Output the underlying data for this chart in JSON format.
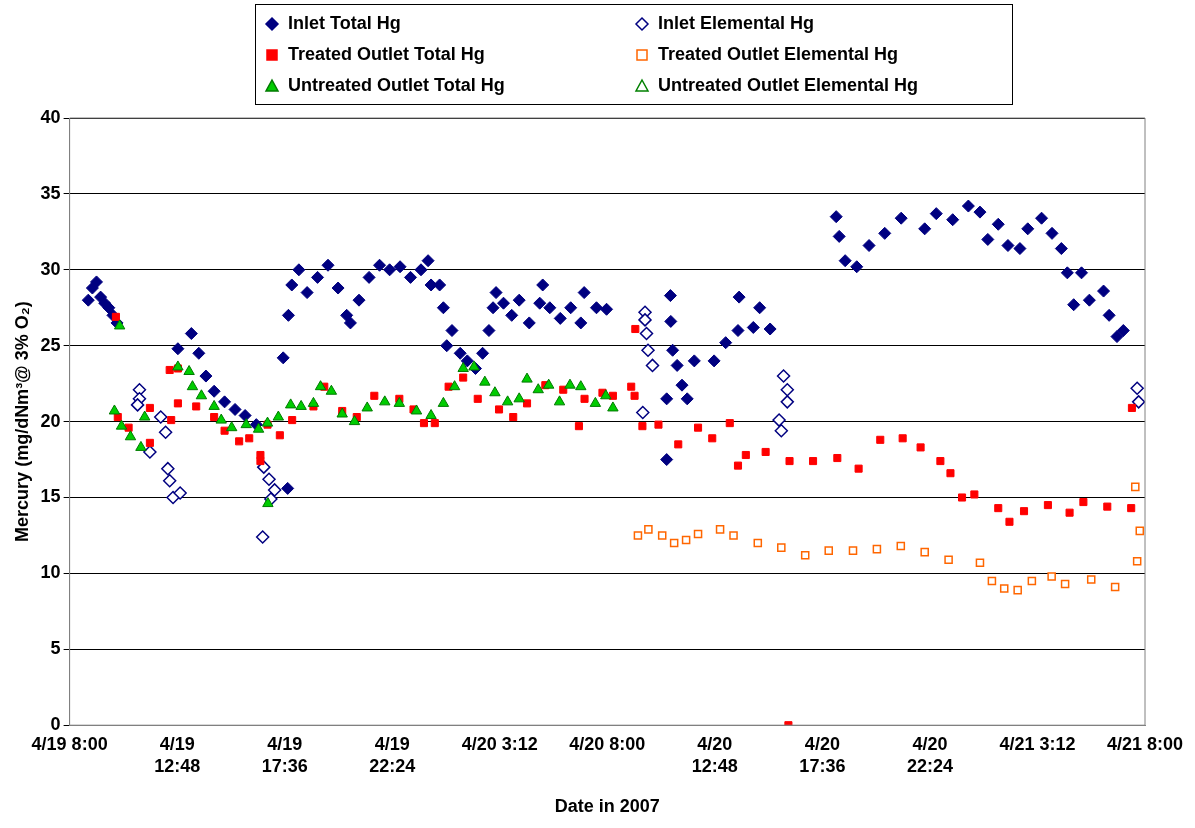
{
  "chart_data": {
    "type": "scatter",
    "xlabel": "Date in 2007",
    "ylabel": "Mercury (mg/dNm³@ 3% O₂)",
    "xlim": [
      "2007-04-19T08:00",
      "2007-04-21T08:00"
    ],
    "xticks": [
      {
        "value": "2007-04-19T08:00",
        "label": "4/19 8:00"
      },
      {
        "value": "2007-04-19T12:48",
        "label": "4/19 12:48"
      },
      {
        "value": "2007-04-19T17:36",
        "label": "4/19 17:36"
      },
      {
        "value": "2007-04-19T22:24",
        "label": "4/19 22:24"
      },
      {
        "value": "2007-04-20T03:12",
        "label": "4/20 3:12"
      },
      {
        "value": "2007-04-20T08:00",
        "label": "4/20 8:00"
      },
      {
        "value": "2007-04-20T12:48",
        "label": "4/20 12:48"
      },
      {
        "value": "2007-04-20T17:36",
        "label": "4/20 17:36"
      },
      {
        "value": "2007-04-20T22:24",
        "label": "4/20 22:24"
      },
      {
        "value": "2007-04-21T03:12",
        "label": "4/21 3:12"
      },
      {
        "value": "2007-04-21T08:00",
        "label": "4/21 8:00"
      }
    ],
    "ylim": [
      0,
      40
    ],
    "yticks": [
      0,
      5,
      10,
      15,
      20,
      25,
      30,
      35,
      40
    ],
    "grid": "y",
    "legend": "top",
    "series": [
      {
        "name": "Inlet Total Hg",
        "color": "#000080",
        "marker": "diamond",
        "x": [
          "2007-04-19T08:50",
          "2007-04-19T09:01",
          "2007-04-19T09:12",
          "2007-04-19T09:23",
          "2007-04-19T09:34",
          "2007-04-19T09:45",
          "2007-04-19T09:56",
          "2007-04-19T10:07",
          "2007-04-19T12:50",
          "2007-04-19T13:26",
          "2007-04-19T13:46",
          "2007-04-19T14:05",
          "2007-04-19T14:27",
          "2007-04-19T14:55",
          "2007-04-19T15:23",
          "2007-04-19T15:50",
          "2007-04-19T16:20",
          "2007-04-19T17:44",
          "2007-04-19T17:32",
          "2007-04-19T17:46",
          "2007-04-19T17:55",
          "2007-04-19T18:14",
          "2007-04-19T18:36",
          "2007-04-19T19:04",
          "2007-04-19T19:32",
          "2007-04-19T19:59",
          "2007-04-19T20:22",
          "2007-04-19T20:32",
          "2007-04-19T20:55",
          "2007-04-19T21:22",
          "2007-04-19T21:50",
          "2007-04-19T22:17",
          "2007-04-19T22:45",
          "2007-04-19T23:13",
          "2007-04-19T23:41",
          "2007-04-20T00:00",
          "2007-04-20T00:08",
          "2007-04-20T00:31",
          "2007-04-20T00:41",
          "2007-04-20T00:50",
          "2007-04-20T01:04",
          "2007-04-20T01:26",
          "2007-04-20T01:45",
          "2007-04-20T02:07",
          "2007-04-20T02:26",
          "2007-04-20T02:43",
          "2007-04-20T02:54",
          "2007-04-20T03:02",
          "2007-04-20T03:22",
          "2007-04-20T03:44",
          "2007-04-20T04:04",
          "2007-04-20T04:31",
          "2007-04-20T04:59",
          "2007-04-20T05:07",
          "2007-04-20T05:26",
          "2007-04-20T05:54",
          "2007-04-20T06:22",
          "2007-04-20T06:49",
          "2007-04-20T06:58",
          "2007-04-20T07:31",
          "2007-04-20T07:58",
          "2007-04-20T10:39",
          "2007-04-20T10:39",
          "2007-04-20T10:49",
          "2007-04-20T10:50",
          "2007-04-20T10:55",
          "2007-04-20T11:07",
          "2007-04-20T11:20",
          "2007-04-20T11:34",
          "2007-04-20T11:53",
          "2007-04-20T12:46",
          "2007-04-20T13:17",
          "2007-04-20T13:50",
          "2007-04-20T14:31",
          "2007-04-20T14:48",
          "2007-04-20T15:16",
          "2007-04-20T13:53",
          "2007-04-20T18:13",
          "2007-04-20T18:21",
          "2007-04-20T18:37",
          "2007-04-20T19:08",
          "2007-04-20T19:41",
          "2007-04-20T20:23",
          "2007-04-20T21:07",
          "2007-04-20T22:10",
          "2007-04-20T22:41",
          "2007-04-20T23:25",
          "2007-04-21T00:07",
          "2007-04-21T00:38",
          "2007-04-21T00:59",
          "2007-04-21T01:27",
          "2007-04-21T01:53",
          "2007-04-21T02:25",
          "2007-04-21T02:46",
          "2007-04-21T03:23",
          "2007-04-21T03:51",
          "2007-04-21T04:16",
          "2007-04-21T04:32",
          "2007-04-21T04:49",
          "2007-04-21T05:10",
          "2007-04-21T05:31",
          "2007-04-21T06:09",
          "2007-04-21T06:24",
          "2007-04-21T06:45",
          "2007-04-21T07:02"
        ],
        "values": [
          28,
          28.8,
          29.2,
          28.2,
          27.8,
          27.5,
          27,
          26.5,
          24.8,
          25.8,
          24.5,
          23,
          22,
          21.3,
          20.8,
          20.4,
          19.8,
          15.6,
          24.2,
          27,
          29,
          30,
          28.5,
          29.5,
          30.3,
          28.8,
          27,
          26.5,
          28,
          29.5,
          30.3,
          30,
          30.2,
          29.5,
          30,
          30.6,
          29,
          29,
          27.5,
          25,
          26,
          24.5,
          24,
          23.5,
          24.5,
          26,
          27.5,
          28.5,
          27.8,
          27,
          28,
          26.5,
          27.8,
          29,
          27.5,
          26.8,
          27.5,
          26.5,
          28.5,
          27.5,
          27.4,
          21.5,
          17.5,
          28.3,
          26.6,
          24.7,
          23.7,
          22.4,
          21.5,
          24,
          24,
          25.2,
          26,
          26.2,
          27.5,
          26.1,
          28.2,
          33.5,
          32.2,
          30.6,
          30.2,
          31.6,
          32.4,
          33.4,
          32.7,
          33.7,
          33.3,
          34.2,
          33.8,
          32,
          33,
          31.6,
          31.4,
          32.7,
          33.4,
          32.4,
          31.4,
          29.8,
          27.7,
          29.8,
          28,
          28.6,
          27,
          25.6,
          26
        ]
      },
      {
        "name": "Inlet Elemental Hg",
        "color": "#000080",
        "marker": "diamond-open",
        "x": [
          "2007-04-19T11:07",
          "2007-04-19T11:07",
          "2007-04-19T11:02",
          "2007-04-19T11:35",
          "2007-04-19T12:04",
          "2007-04-19T12:17",
          "2007-04-19T12:23",
          "2007-04-19T12:28",
          "2007-04-19T12:37",
          "2007-04-19T12:56",
          "2007-04-19T16:40",
          "2007-04-19T16:54",
          "2007-04-19T17:09",
          "2007-04-19T16:59",
          "2007-04-19T16:37",
          "2007-04-20T09:41",
          "2007-04-20T09:41",
          "2007-04-20T09:45",
          "2007-04-20T09:49",
          "2007-04-20T10:01",
          "2007-04-20T09:35",
          "2007-04-20T15:52",
          "2007-04-20T16:02",
          "2007-04-20T16:02",
          "2007-04-20T15:40",
          "2007-04-20T15:46",
          "2007-04-21T07:39",
          "2007-04-21T07:43"
        ],
        "values": [
          22.1,
          21.5,
          21.1,
          18,
          20.3,
          19.3,
          16.9,
          16.1,
          15,
          15.3,
          17,
          16.2,
          15.5,
          14.9,
          12.4,
          27.2,
          26.7,
          25.8,
          24.7,
          23.7,
          20.6,
          23,
          22.1,
          21.3,
          20.1,
          19.4,
          22.2,
          21.3
        ]
      },
      {
        "name": "Treated Outlet Total Hg",
        "color": "#ff0000",
        "marker": "square",
        "x": [
          "2007-04-19T10:04",
          "2007-04-19T10:09",
          "2007-04-19T10:38",
          "2007-04-19T11:35",
          "2007-04-19T11:35",
          "2007-04-19T12:28",
          "2007-04-19T12:50",
          "2007-04-19T12:32",
          "2007-04-19T12:50",
          "2007-04-19T13:39",
          "2007-04-19T14:27",
          "2007-04-19T14:55",
          "2007-04-19T15:34",
          "2007-04-19T16:01",
          "2007-04-19T16:31",
          "2007-04-19T16:31",
          "2007-04-19T16:50",
          "2007-04-19T17:23",
          "2007-04-19T17:56",
          "2007-04-19T18:53",
          "2007-04-19T19:22",
          "2007-04-19T20:10",
          "2007-04-19T20:49",
          "2007-04-19T21:36",
          "2007-04-19T22:43",
          "2007-04-19T23:21",
          "2007-04-19T23:49",
          "2007-04-20T00:18",
          "2007-04-20T00:55",
          "2007-04-20T01:34",
          "2007-04-20T02:13",
          "2007-04-20T03:10",
          "2007-04-20T03:48",
          "2007-04-20T04:25",
          "2007-04-20T05:14",
          "2007-04-20T06:02",
          "2007-04-20T06:44",
          "2007-04-20T06:59",
          "2007-04-20T07:47",
          "2007-04-20T08:15",
          "2007-04-20T09:15",
          "2007-04-20T09:04",
          "2007-04-20T09:13",
          "2007-04-20T09:34",
          "2007-04-20T10:17",
          "2007-04-20T11:10",
          "2007-04-20T12:03",
          "2007-04-20T12:41",
          "2007-04-20T13:28",
          "2007-04-20T13:50",
          "2007-04-20T14:11",
          "2007-04-20T15:04",
          "2007-04-20T16:08",
          "2007-04-20T17:11",
          "2007-04-20T18:16",
          "2007-04-20T19:13",
          "2007-04-20T20:11",
          "2007-04-20T21:11",
          "2007-04-20T21:59",
          "2007-04-20T22:52",
          "2007-04-20T23:19",
          "2007-04-20T23:50",
          "2007-04-21T00:23",
          "2007-04-21T01:27",
          "2007-04-21T01:57",
          "2007-04-21T02:36",
          "2007-04-21T03:40",
          "2007-04-21T04:38",
          "2007-04-21T05:15",
          "2007-04-21T06:19",
          "2007-04-21T07:23",
          "2007-04-21T07:25",
          "2007-04-20T16:05"
        ],
        "values": [
          26.9,
          20.3,
          19.6,
          20.9,
          18.6,
          23.4,
          23.5,
          20.1,
          21.2,
          21,
          20.3,
          19.4,
          18.7,
          18.9,
          17.8,
          17.4,
          19.8,
          19.1,
          20.1,
          21,
          22.3,
          20.7,
          20.3,
          21.7,
          21.5,
          20.8,
          19.9,
          19.9,
          22.3,
          22.9,
          21.5,
          20.8,
          20.3,
          21.2,
          22.4,
          22.1,
          19.7,
          21.5,
          21.9,
          21.7,
          26.1,
          22.3,
          21.7,
          19.7,
          19.8,
          18.5,
          19.6,
          18.9,
          19.9,
          17.1,
          17.8,
          18,
          17.4,
          17.4,
          17.6,
          16.9,
          18.8,
          18.9,
          18.3,
          17.4,
          16.6,
          15,
          15.2,
          14.3,
          13.4,
          14.1,
          14.5,
          14,
          14.7,
          14.4,
          14.3,
          20.9,
          0
        ]
      },
      {
        "name": "Treated Outlet Elemental Hg",
        "color": "#ff6600",
        "marker": "square-open",
        "x": [
          "2007-04-20T09:22",
          "2007-04-20T09:50",
          "2007-04-20T10:27",
          "2007-04-20T10:59",
          "2007-04-20T11:31",
          "2007-04-20T12:03",
          "2007-04-20T13:02",
          "2007-04-20T13:38",
          "2007-04-20T14:43",
          "2007-04-20T15:46",
          "2007-04-20T16:50",
          "2007-04-20T17:53",
          "2007-04-20T18:58",
          "2007-04-20T20:02",
          "2007-04-20T21:06",
          "2007-04-20T22:10",
          "2007-04-20T23:14",
          "2007-04-21T00:38",
          "2007-04-21T01:10",
          "2007-04-21T01:43",
          "2007-04-21T02:19",
          "2007-04-21T02:57",
          "2007-04-21T03:50",
          "2007-04-21T04:26",
          "2007-04-21T05:36",
          "2007-04-21T06:40",
          "2007-04-21T07:34",
          "2007-04-21T07:46",
          "2007-04-21T07:39"
        ],
        "values": [
          12.5,
          12.9,
          12.5,
          12,
          12.2,
          12.6,
          12.9,
          12.5,
          12,
          11.7,
          11.2,
          11.5,
          11.5,
          11.6,
          11.8,
          11.4,
          10.9,
          10.7,
          9.5,
          9,
          8.9,
          9.5,
          9.8,
          9.3,
          9.6,
          9.1,
          15.7,
          12.8,
          10.8
        ]
      },
      {
        "name": "Untreated Outlet Total Hg",
        "color": "#00cc00",
        "marker": "triangle",
        "x": [
          "2007-04-19T10:14",
          "2007-04-19T10:00",
          "2007-04-19T10:19",
          "2007-04-19T10:43",
          "2007-04-19T11:11",
          "2007-04-19T11:21",
          "2007-04-19T12:50",
          "2007-04-19T13:20",
          "2007-04-19T13:29",
          "2007-04-19T13:53",
          "2007-04-19T14:27",
          "2007-04-19T14:46",
          "2007-04-19T15:14",
          "2007-04-19T15:53",
          "2007-04-19T16:26",
          "2007-04-19T16:51",
          "2007-04-19T16:50",
          "2007-04-19T17:19",
          "2007-04-19T17:52",
          "2007-04-19T18:20",
          "2007-04-19T18:53",
          "2007-04-19T19:12",
          "2007-04-19T19:41",
          "2007-04-19T20:10",
          "2007-04-19T20:43",
          "2007-04-19T21:17",
          "2007-04-19T22:04",
          "2007-04-19T22:43",
          "2007-04-19T23:29",
          "2007-04-20T00:08",
          "2007-04-20T00:41",
          "2007-04-20T01:11",
          "2007-04-20T01:34",
          "2007-04-20T02:03",
          "2007-04-20T02:32",
          "2007-04-20T02:59",
          "2007-04-20T03:33",
          "2007-04-20T04:04",
          "2007-04-20T04:25",
          "2007-04-20T04:55",
          "2007-04-20T05:23",
          "2007-04-20T05:52",
          "2007-04-20T06:20",
          "2007-04-20T06:49",
          "2007-04-20T07:28",
          "2007-04-20T07:56",
          "2007-04-20T08:15"
        ],
        "values": [
          26.3,
          20.7,
          19.7,
          19,
          18.3,
          20.3,
          23.6,
          23.3,
          22.3,
          21.7,
          21,
          20.1,
          19.6,
          19.8,
          19.5,
          14.6,
          19.9,
          20.3,
          21.1,
          21,
          21.2,
          22.3,
          22,
          20.5,
          20,
          20.9,
          21.3,
          21.2,
          20.7,
          20.4,
          21.2,
          22.3,
          23.5,
          23.6,
          22.6,
          21.9,
          21.3,
          21.5,
          22.8,
          22.1,
          22.4,
          21.3,
          22.4,
          22.3,
          21.2,
          21.7,
          20.9
        ]
      },
      {
        "name": "Untreated Outlet Elemental Hg",
        "color": "#008000",
        "marker": "triangle-open"
      }
    ]
  }
}
